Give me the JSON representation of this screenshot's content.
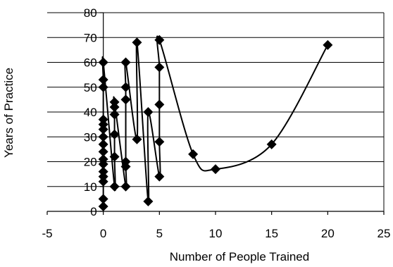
{
  "chart_data": {
    "type": "scatter",
    "xlabel": "Number of People Trained",
    "ylabel": "Years of Practice",
    "xlim": [
      -5,
      25
    ],
    "ylim": [
      0,
      80
    ],
    "xticks": [
      -5,
      0,
      5,
      10,
      15,
      20,
      25
    ],
    "yticks": [
      0,
      10,
      20,
      30,
      40,
      50,
      60,
      70,
      80
    ],
    "grid": "horizontal major gridlines",
    "legend": "none",
    "marker": "diamond",
    "line": "smoothed line connecting points in sequence",
    "series": [
      {
        "points": [
          [
            0,
            2
          ],
          [
            0,
            5
          ],
          [
            0,
            12
          ],
          [
            0,
            14
          ],
          [
            0,
            16
          ],
          [
            0,
            19
          ],
          [
            0,
            21
          ],
          [
            0,
            24
          ],
          [
            0,
            27
          ],
          [
            0,
            30
          ],
          [
            0,
            33
          ],
          [
            0,
            35
          ],
          [
            0,
            37
          ],
          [
            0,
            50
          ],
          [
            0,
            53
          ],
          [
            0,
            60
          ],
          [
            1,
            10
          ],
          [
            1,
            22
          ],
          [
            1,
            31
          ],
          [
            1,
            39
          ],
          [
            1,
            42
          ],
          [
            1,
            44
          ],
          [
            2,
            10
          ],
          [
            2,
            18
          ],
          [
            2,
            20
          ],
          [
            2,
            45
          ],
          [
            2,
            50
          ],
          [
            2,
            60
          ],
          [
            3,
            29
          ],
          [
            3,
            68
          ],
          [
            4,
            4
          ],
          [
            4,
            40
          ],
          [
            5,
            14
          ],
          [
            5,
            28
          ],
          [
            5,
            43
          ],
          [
            5,
            58
          ],
          [
            5,
            69
          ],
          [
            8,
            23
          ],
          [
            10,
            17
          ],
          [
            15,
            27
          ],
          [
            20,
            67
          ]
        ]
      }
    ]
  }
}
